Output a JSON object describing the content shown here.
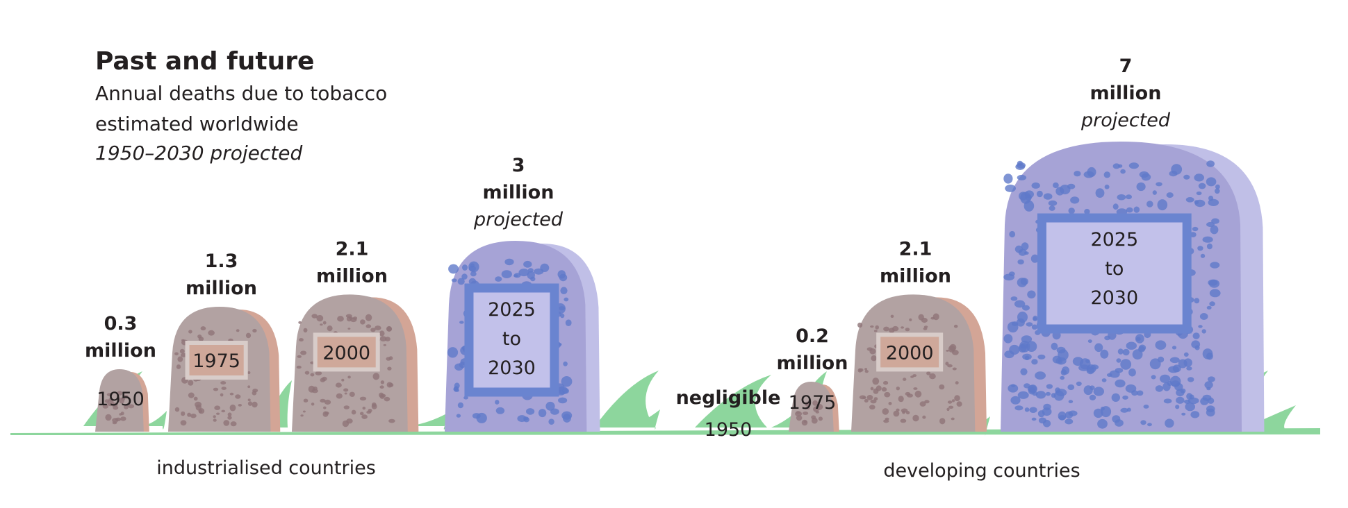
{
  "header": {
    "title": "Past and future",
    "subtitle_line1": "Annual deaths due to tobacco",
    "subtitle_line2": "estimated worldwide",
    "subtitle_line3": "1950–2030 projected"
  },
  "colors": {
    "past_stone": "#b2a2a2",
    "past_stone_side": "#d3a596",
    "past_speckle": "#8e7478",
    "past_plaque": "#cfa89a",
    "past_plaque_border": "#d8ccc9",
    "projected_stone": "#a6a3d6",
    "projected_stone_side": "#c0bfe7",
    "projected_speckle": "#5f79c9",
    "projected_plaque": "#c2c1ea",
    "projected_plaque_border": "#6a84d0",
    "grass": "#8dd69d",
    "text": "#231f20"
  },
  "chart_data": {
    "type": "bar",
    "title": "Past and future",
    "subtitle": "Annual deaths due to tobacco estimated worldwide 1950–2030 projected",
    "unit": "million",
    "categories": [
      "1950",
      "1975",
      "2000",
      "2025 to 2030"
    ],
    "groups": [
      {
        "name": "industrialised countries",
        "bars": [
          {
            "year": "1950",
            "value": 0.3,
            "value_label": "0.3",
            "unit_label": "million",
            "note": ""
          },
          {
            "year": "1975",
            "value": 1.3,
            "value_label": "1.3",
            "unit_label": "million",
            "note": ""
          },
          {
            "year": "2000",
            "value": 2.1,
            "value_label": "2.1",
            "unit_label": "million",
            "note": ""
          },
          {
            "year_lines": [
              "2025",
              "to",
              "2030"
            ],
            "value": 3,
            "value_label": "3",
            "unit_label": "million",
            "note": "projected"
          }
        ]
      },
      {
        "name": "developing countries",
        "bars": [
          {
            "year": "1950",
            "value": 0,
            "value_label": "negligible",
            "unit_label": "",
            "note": ""
          },
          {
            "year": "1975",
            "value": 0.2,
            "value_label": "0.2",
            "unit_label": "million",
            "note": ""
          },
          {
            "year": "2000",
            "value": 2.1,
            "value_label": "2.1",
            "unit_label": "million",
            "note": ""
          },
          {
            "year_lines": [
              "2025",
              "to",
              "2030"
            ],
            "value": 7,
            "value_label": "7",
            "unit_label": "million",
            "note": "projected"
          }
        ]
      }
    ]
  }
}
